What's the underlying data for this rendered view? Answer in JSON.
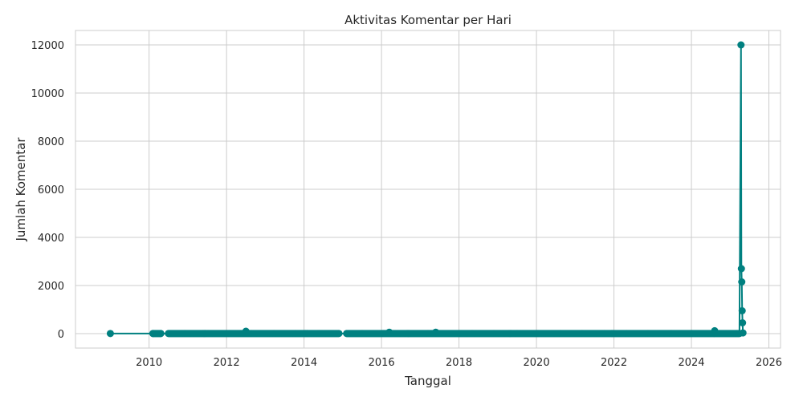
{
  "chart_data": {
    "type": "line",
    "title": "Aktivitas Komentar per Hari",
    "xlabel": "Tanggal",
    "ylabel": "Jumlah Komentar",
    "xlim": [
      2008.1,
      2026.3
    ],
    "ylim": [
      -600,
      12600
    ],
    "x_ticks": [
      2010,
      2012,
      2014,
      2016,
      2018,
      2020,
      2022,
      2024,
      2026
    ],
    "x_tick_labels": [
      "2010",
      "2012",
      "2014",
      "2016",
      "2018",
      "2020",
      "2022",
      "2024",
      "2026"
    ],
    "y_ticks": [
      0,
      2000,
      4000,
      6000,
      8000,
      10000,
      12000
    ],
    "y_tick_labels": [
      "0",
      "2000",
      "4000",
      "6000",
      "8000",
      "10000",
      "12000"
    ],
    "grid": true,
    "legend": "none",
    "series": [
      {
        "color": "#008080",
        "marker": "circle",
        "dense_baseline": [
          {
            "x_start": 2010.1,
            "x_end": 2010.3,
            "value": 5
          },
          {
            "x_start": 2010.5,
            "x_end": 2014.9,
            "value": 5
          },
          {
            "x_start": 2015.1,
            "x_end": 2025.25,
            "value": 5
          }
        ],
        "points": [
          {
            "x": 2009.0,
            "y": 5
          },
          {
            "x": 2010.1,
            "y": 5
          },
          {
            "x": 2010.3,
            "y": 5
          },
          {
            "x": 2012.5,
            "y": 100
          },
          {
            "x": 2016.2,
            "y": 60
          },
          {
            "x": 2017.4,
            "y": 60
          },
          {
            "x": 2024.6,
            "y": 120
          },
          {
            "x": 2025.28,
            "y": 12000
          },
          {
            "x": 2025.29,
            "y": 2700
          },
          {
            "x": 2025.3,
            "y": 2150
          },
          {
            "x": 2025.31,
            "y": 950
          },
          {
            "x": 2025.32,
            "y": 450
          },
          {
            "x": 2025.33,
            "y": 30
          }
        ]
      }
    ]
  }
}
